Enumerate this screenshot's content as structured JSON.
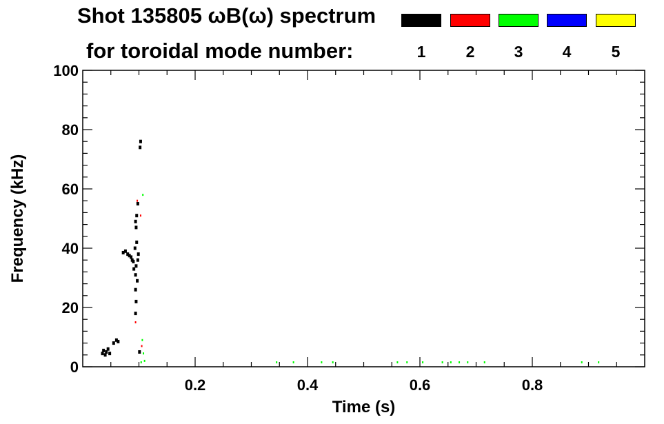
{
  "chart_data": {
    "type": "scatter",
    "title": "Shot 135805 ωB(ω) spectrum",
    "subtitle": "for toroidal mode number:",
    "xlabel": "Time (s)",
    "ylabel": "Frequency (kHz)",
    "xlim": [
      0.0,
      1.0
    ],
    "ylim": [
      0,
      100
    ],
    "x_ticks": [
      0.2,
      0.4,
      0.6,
      0.8
    ],
    "x_tick_labels": [
      "0.2",
      "0.4",
      "0.6",
      "0.8"
    ],
    "y_ticks": [
      0,
      20,
      40,
      60,
      80,
      100
    ],
    "y_tick_labels": [
      "0",
      "20",
      "40",
      "60",
      "80",
      "100"
    ],
    "legend": [
      {
        "label": "1",
        "color": "#000000"
      },
      {
        "label": "2",
        "color": "#ff0000"
      },
      {
        "label": "3",
        "color": "#00ff00"
      },
      {
        "label": "4",
        "color": "#0000ff"
      },
      {
        "label": "5",
        "color": "#ffff00"
      }
    ],
    "legend_position": "top-right",
    "grid": false,
    "series": [
      {
        "name": "1",
        "color": "#000000",
        "points": [
          [
            0.035,
            4.5
          ],
          [
            0.037,
            5.5
          ],
          [
            0.04,
            4.0
          ],
          [
            0.042,
            5.0
          ],
          [
            0.045,
            6.0
          ],
          [
            0.048,
            4.5
          ],
          [
            0.055,
            8.0
          ],
          [
            0.06,
            9.0
          ],
          [
            0.063,
            8.5
          ],
          [
            0.072,
            38.5
          ],
          [
            0.076,
            39.0
          ],
          [
            0.08,
            38.0
          ],
          [
            0.083,
            37.5
          ],
          [
            0.086,
            37.0
          ],
          [
            0.088,
            36.0
          ],
          [
            0.09,
            35.5
          ],
          [
            0.091,
            33.0
          ],
          [
            0.093,
            40.0
          ],
          [
            0.094,
            31.0
          ],
          [
            0.095,
            34.0
          ],
          [
            0.096,
            42.0
          ],
          [
            0.097,
            29.0
          ],
          [
            0.098,
            36.0
          ],
          [
            0.099,
            38.0
          ],
          [
            0.095,
            47.0
          ],
          [
            0.094,
            49.0
          ],
          [
            0.096,
            51.0
          ],
          [
            0.094,
            26.0
          ],
          [
            0.095,
            22.0
          ],
          [
            0.094,
            18.0
          ],
          [
            0.098,
            55.0
          ],
          [
            0.102,
            74.0
          ],
          [
            0.103,
            76.0
          ],
          [
            0.101,
            5.0
          ]
        ]
      },
      {
        "name": "2",
        "color": "#ff0000",
        "points": [
          [
            0.103,
            51.0
          ],
          [
            0.097,
            56.0
          ],
          [
            0.094,
            15.0
          ],
          [
            0.105,
            7.0
          ]
        ]
      },
      {
        "name": "3",
        "color": "#00ff00",
        "points": [
          [
            0.107,
            58.0
          ],
          [
            0.106,
            9.0
          ],
          [
            0.108,
            4.5
          ],
          [
            0.11,
            2.0
          ],
          [
            0.104,
            1.5
          ],
          [
            0.345,
            1.5
          ],
          [
            0.375,
            1.5
          ],
          [
            0.425,
            1.5
          ],
          [
            0.445,
            1.5
          ],
          [
            0.56,
            1.5
          ],
          [
            0.577,
            1.5
          ],
          [
            0.605,
            1.5
          ],
          [
            0.64,
            1.5
          ],
          [
            0.655,
            1.5
          ],
          [
            0.67,
            1.5
          ],
          [
            0.685,
            1.5
          ],
          [
            0.715,
            1.5
          ],
          [
            0.888,
            1.5
          ],
          [
            0.918,
            1.5
          ]
        ]
      },
      {
        "name": "4",
        "color": "#0000ff",
        "points": []
      },
      {
        "name": "5",
        "color": "#ffff00",
        "points": []
      }
    ]
  }
}
